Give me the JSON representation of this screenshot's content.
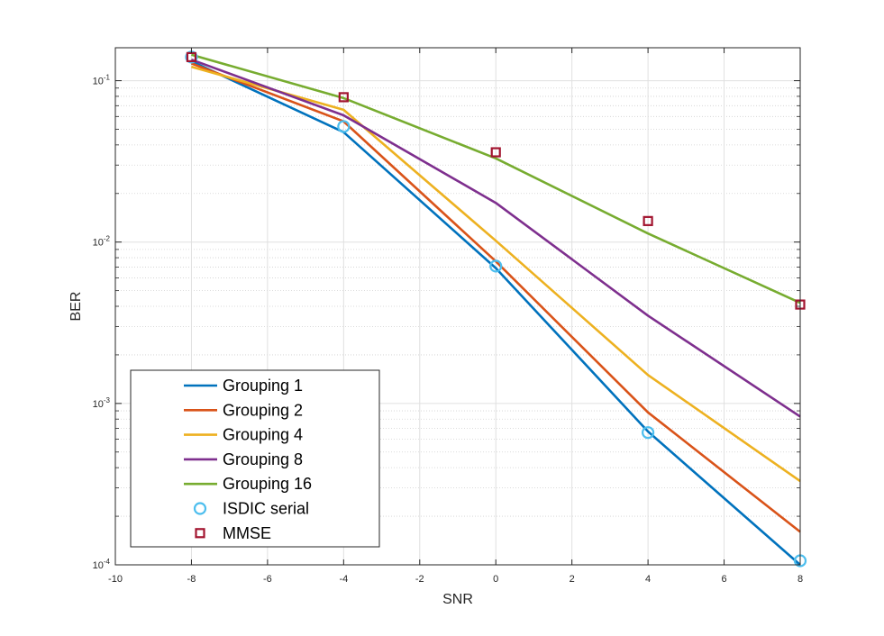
{
  "chart_data": {
    "type": "line",
    "title": "",
    "xlabel": "SNR",
    "ylabel": "BER",
    "xlim": [
      -10,
      8
    ],
    "ylim": [
      0.0001,
      0.16
    ],
    "yscale": "log",
    "grid": true,
    "minor_grid": true,
    "legend_position": "bottom-left",
    "x_ticks": [
      -10,
      -8,
      -6,
      -4,
      -2,
      0,
      2,
      4,
      6,
      8
    ],
    "x_tick_labels": [
      "-10",
      "-8",
      "-6",
      "-4",
      "-2",
      "0",
      "2",
      "4",
      "6",
      "8"
    ],
    "y_ticks": [
      {
        "value": 0.0001,
        "base": "10",
        "exponent": "-4"
      },
      {
        "value": 0.001,
        "base": "10",
        "exponent": "-3"
      },
      {
        "value": 0.01,
        "base": "10",
        "exponent": "-2"
      },
      {
        "value": 0.1,
        "base": "10",
        "exponent": "-1"
      }
    ],
    "x": [
      -8,
      -4,
      0,
      4,
      8
    ],
    "series": [
      {
        "name": "Grouping 1",
        "style": "line",
        "color": "#0072bd",
        "values": [
          0.132,
          0.048,
          0.0069,
          0.00067,
          0.0001
        ]
      },
      {
        "name": "Grouping 2",
        "style": "line",
        "color": "#d95319",
        "values": [
          0.128,
          0.056,
          0.0076,
          0.00088,
          0.00016
        ]
      },
      {
        "name": "Grouping 4",
        "style": "line",
        "color": "#edb120",
        "values": [
          0.122,
          0.066,
          0.0102,
          0.0015,
          0.00033
        ]
      },
      {
        "name": "Grouping 8",
        "style": "line",
        "color": "#7e2f8e",
        "values": [
          0.135,
          0.061,
          0.0175,
          0.0035,
          0.00083
        ]
      },
      {
        "name": "Grouping 16",
        "style": "line",
        "color": "#77ac30",
        "values": [
          0.145,
          0.078,
          0.033,
          0.0113,
          0.0042
        ]
      },
      {
        "name": "ISDIC serial",
        "style": "marker-circle",
        "color": "#4dbeee",
        "values": [
          0.14,
          0.052,
          0.0071,
          0.00066,
          0.000106
        ]
      },
      {
        "name": "MMSE",
        "style": "marker-square",
        "color": "#a2142f",
        "values": [
          0.14,
          0.079,
          0.036,
          0.0135,
          0.0041
        ]
      }
    ]
  }
}
